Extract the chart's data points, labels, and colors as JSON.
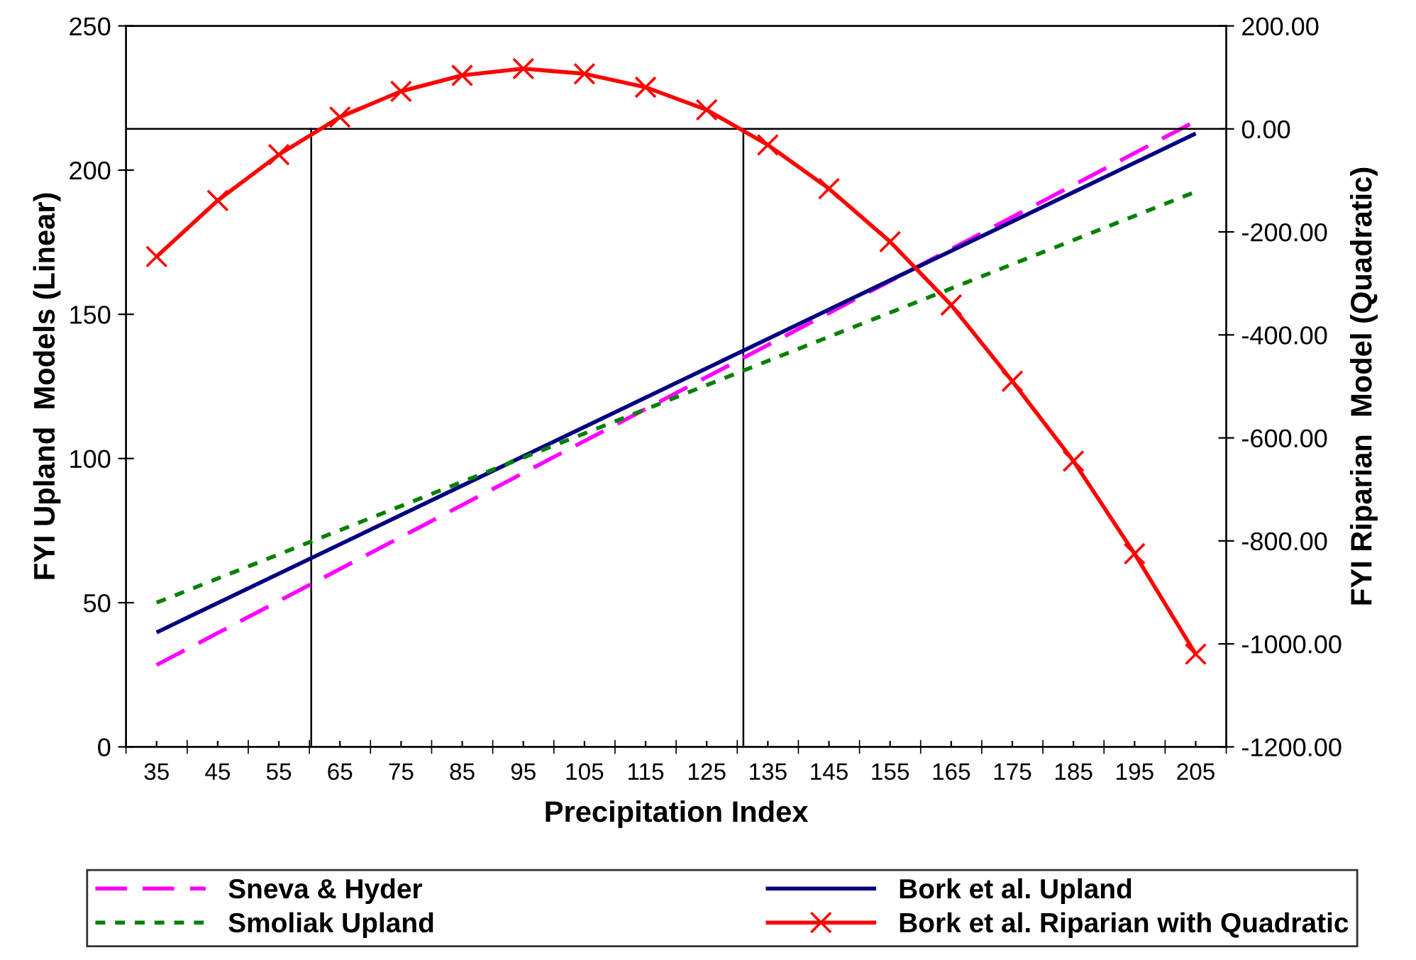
{
  "chart_data": {
    "type": "line",
    "xlabel": "Precipitation Index",
    "ylabel": "FYI Upland  Models (Linear)",
    "y2label": "FYI Riparian  Model (Quadratic)",
    "xlim": [
      30,
      210
    ],
    "xticks": [
      35,
      45,
      55,
      65,
      75,
      85,
      95,
      105,
      115,
      125,
      135,
      145,
      155,
      165,
      175,
      185,
      195,
      205
    ],
    "ylim": [
      0,
      250
    ],
    "yticks": [
      0,
      50,
      100,
      150,
      200,
      250
    ],
    "y2lim": [
      -1200,
      200
    ],
    "y2ticks": [
      {
        "value": -1200,
        "label": "-1200.00"
      },
      {
        "value": -1000,
        "label": "-1000.00"
      },
      {
        "value": -800,
        "label": "-800.00"
      },
      {
        "value": -600,
        "label": "-600.00"
      },
      {
        "value": -400,
        "label": "-400.00"
      },
      {
        "value": -200,
        "label": "-200.00"
      },
      {
        "value": 0,
        "label": "0.00"
      },
      {
        "value": 200,
        "label": "200.00"
      }
    ],
    "grid": false,
    "legend": "bottom",
    "series": [
      {
        "name": "Sneva & Hyder",
        "color": "#ff00ff",
        "line_style": "dashed",
        "marker": "none",
        "x": [
          35,
          205
        ],
        "values": [
          28.4,
          217
        ]
      },
      {
        "name": "Bork et al. Upland",
        "color": "#000080",
        "line_style": "solid",
        "marker": "none",
        "x": [
          35,
          205
        ],
        "values": [
          39.7,
          212.7
        ]
      },
      {
        "name": "Smoliak Upland",
        "color": "#008000",
        "line_style": "dotted",
        "marker": "none",
        "x": [
          35,
          205
        ],
        "values": [
          50,
          192.5
        ]
      },
      {
        "name": "Bork et al. Riparian with Quadratic",
        "color": "#ff0000",
        "line_style": "solid",
        "marker": "cross",
        "axis": "y2",
        "x": [
          35,
          45,
          55,
          65,
          75,
          85,
          95,
          105,
          115,
          125,
          135,
          145,
          155,
          165,
          175,
          185,
          195,
          205
        ],
        "values": [
          -248,
          -139,
          -50,
          23,
          73,
          104,
          117,
          107,
          81,
          37,
          -31,
          -116,
          -219,
          -342,
          -490,
          -645,
          -825,
          -1020
        ]
      }
    ],
    "ref_lines": [
      {
        "axis": "y2",
        "value": 0,
        "color": "#000000"
      },
      {
        "axis": "x",
        "value": 60.3,
        "color": "#000000"
      },
      {
        "axis": "x",
        "value": 131,
        "color": "#000000"
      }
    ]
  }
}
